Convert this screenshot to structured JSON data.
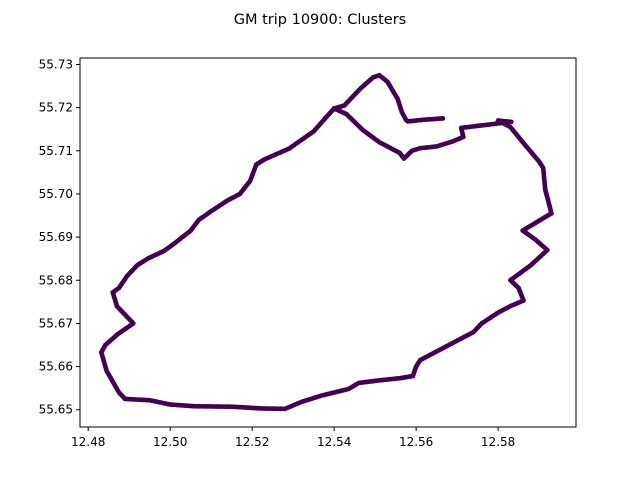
{
  "chart_data": {
    "type": "scatter",
    "title": "GM trip 10900: Clusters",
    "xlabel": "",
    "ylabel": "",
    "xlim": [
      12.478,
      12.599
    ],
    "ylim": [
      55.646,
      55.7315
    ],
    "x_ticks": [
      "12.48",
      "12.50",
      "12.52",
      "12.54",
      "12.56",
      "12.58"
    ],
    "y_ticks": [
      "55.65",
      "55.66",
      "55.67",
      "55.68",
      "55.69",
      "55.70",
      "55.71",
      "55.72",
      "55.73"
    ],
    "grid": false,
    "legend": "none",
    "marker_color": "#440154",
    "series": [
      {
        "name": "",
        "points": [
          [
            12.5665,
            55.7175
          ],
          [
            12.562,
            55.7172
          ],
          [
            12.558,
            55.7168
          ],
          [
            12.5575,
            55.7172
          ],
          [
            12.5565,
            55.719
          ],
          [
            12.5555,
            55.722
          ],
          [
            12.553,
            55.726
          ],
          [
            12.551,
            55.7275
          ],
          [
            12.5495,
            55.727
          ],
          [
            12.5465,
            55.7245
          ],
          [
            12.5425,
            55.7205
          ],
          [
            12.54,
            55.7198
          ],
          [
            12.5378,
            55.7175
          ],
          [
            12.535,
            55.7145
          ],
          [
            12.532,
            55.7125
          ],
          [
            12.529,
            55.7105
          ],
          [
            12.523,
            55.708
          ],
          [
            12.521,
            55.7068
          ],
          [
            12.5195,
            55.703
          ],
          [
            12.517,
            55.7
          ],
          [
            12.514,
            55.6985
          ],
          [
            12.51,
            55.696
          ],
          [
            12.507,
            55.694
          ],
          [
            12.505,
            55.6915
          ],
          [
            12.501,
            55.6885
          ],
          [
            12.4985,
            55.6868
          ],
          [
            12.4945,
            55.685
          ],
          [
            12.492,
            55.6835
          ],
          [
            12.4895,
            55.681
          ],
          [
            12.4875,
            55.6782
          ],
          [
            12.486,
            55.6772
          ],
          [
            12.487,
            55.674
          ],
          [
            12.491,
            55.67
          ],
          [
            12.4872,
            55.6675
          ],
          [
            12.4842,
            55.665
          ],
          [
            12.4832,
            55.6633
          ],
          [
            12.4845,
            55.659
          ],
          [
            12.4875,
            55.654
          ],
          [
            12.489,
            55.6525
          ],
          [
            12.495,
            55.6522
          ],
          [
            12.5,
            55.6512
          ],
          [
            12.506,
            55.6508
          ],
          [
            12.515,
            55.6507
          ],
          [
            12.522,
            55.6503
          ],
          [
            12.528,
            55.6502
          ],
          [
            12.532,
            55.6518
          ],
          [
            12.537,
            55.6533
          ],
          [
            12.5435,
            55.6548
          ],
          [
            12.546,
            55.6562
          ],
          [
            12.551,
            55.6568
          ],
          [
            12.556,
            55.6573
          ],
          [
            12.5592,
            55.6578
          ],
          [
            12.56,
            55.66
          ],
          [
            12.561,
            55.6615
          ],
          [
            12.565,
            55.6635
          ],
          [
            12.57,
            55.666
          ],
          [
            12.574,
            55.668
          ],
          [
            12.576,
            55.67
          ],
          [
            12.58,
            55.6725
          ],
          [
            12.583,
            55.674
          ],
          [
            12.5862,
            55.6753
          ],
          [
            12.585,
            55.6782
          ],
          [
            12.583,
            55.68
          ],
          [
            12.588,
            55.6835
          ],
          [
            12.592,
            55.687
          ],
          [
            12.589,
            55.6895
          ],
          [
            12.586,
            55.6915
          ],
          [
            12.59,
            55.6938
          ],
          [
            12.593,
            55.6955
          ],
          [
            12.5922,
            55.6985
          ],
          [
            12.5915,
            55.701
          ],
          [
            12.591,
            55.706
          ],
          [
            12.59,
            55.7075
          ],
          [
            12.586,
            55.712
          ],
          [
            12.583,
            55.7155
          ],
          [
            12.58,
            55.717
          ],
          [
            12.5832,
            55.7167
          ],
          [
            12.571,
            55.7153
          ],
          [
            12.5715,
            55.7132
          ],
          [
            12.569,
            55.7122
          ],
          [
            12.565,
            55.711
          ],
          [
            12.561,
            55.7106
          ],
          [
            12.559,
            55.71
          ],
          [
            12.557,
            55.7082
          ],
          [
            12.556,
            55.7095
          ],
          [
            12.551,
            55.712
          ],
          [
            12.547,
            55.7148
          ],
          [
            12.543,
            55.7185
          ],
          [
            12.54,
            55.7198
          ]
        ]
      }
    ]
  }
}
